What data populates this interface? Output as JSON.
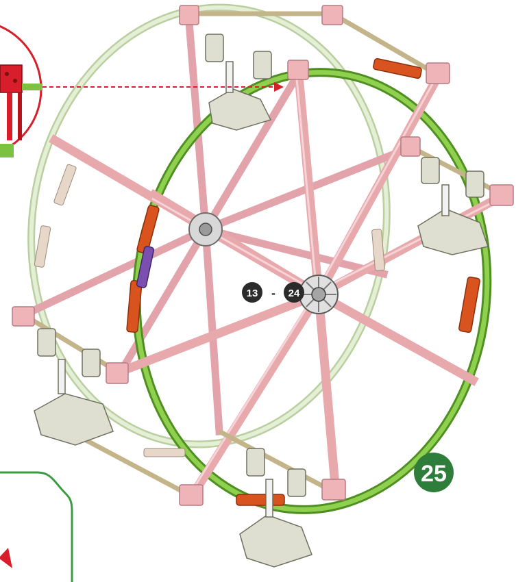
{
  "step": {
    "number": "25",
    "range_start": "13",
    "range_separator": "-",
    "range_end": "24"
  },
  "colors": {
    "pink_rod": "#e8a9ad",
    "pink_rod_dark": "#c98088",
    "green_ring": "#7cc242",
    "green_ring_dark": "#4f8f22",
    "pale_ring": "#cfe3b8",
    "orange_connector": "#d9531e",
    "purple_connector": "#7a4fb0",
    "grey_part": "#c8c8c8",
    "callout_red": "#d81e2a",
    "callout_green": "#3a9b43",
    "badge_green": "#2f7d3a",
    "badge_dark": "#2b2b2b"
  },
  "icons": {
    "callout": "zoom-callout-circle",
    "arrow": "dashed-pointer-arrow",
    "hub": "hub-connector-icon",
    "seat": "gondola-seat-icon"
  }
}
